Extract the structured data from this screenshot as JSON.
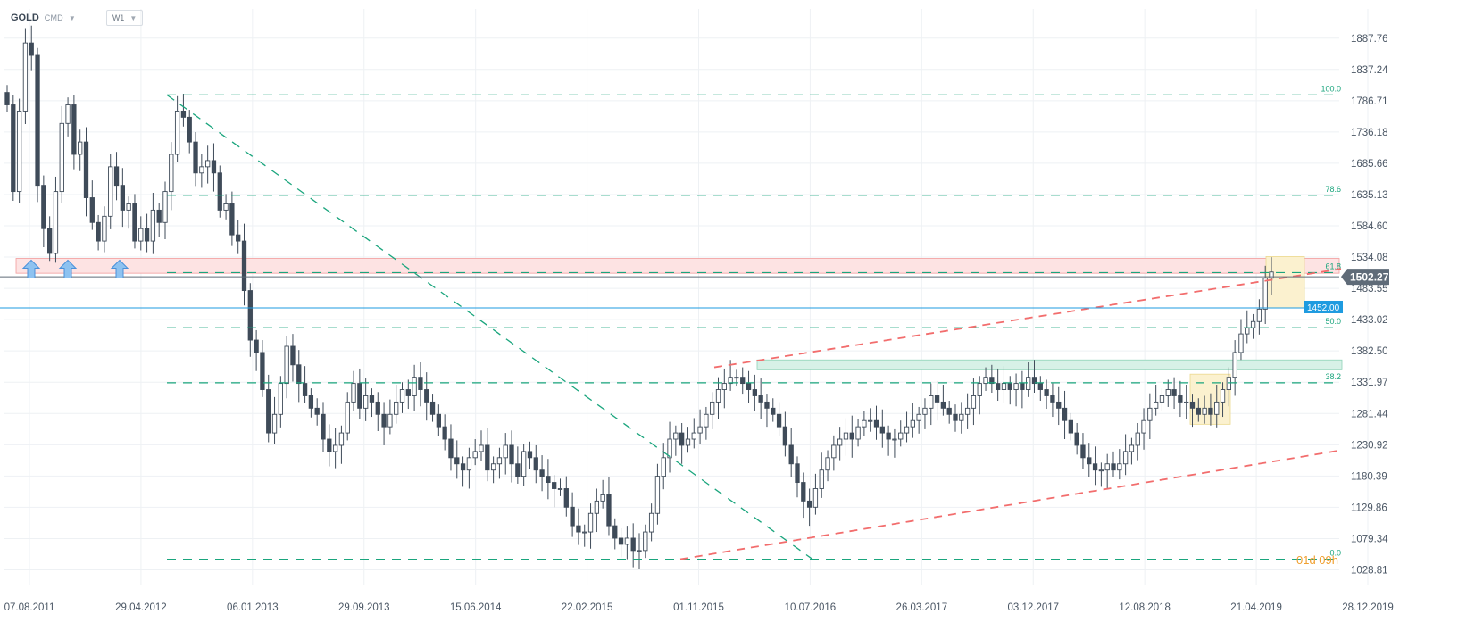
{
  "toolbar": {
    "symbol": "GOLD",
    "market": "CMD",
    "timeframe": "W1"
  },
  "chart_data": {
    "type": "candlestick",
    "symbol": "GOLD",
    "timeframe": "W1",
    "ylim": [
      1005,
      1935
    ],
    "y_ticks": [
      "1887.76",
      "1837.24",
      "1786.71",
      "1736.18",
      "1685.66",
      "1635.13",
      "1584.60",
      "1534.08",
      "1483.55",
      "1433.02",
      "1382.50",
      "1331.97",
      "1281.44",
      "1230.92",
      "1180.39",
      "1129.86",
      "1079.34",
      "1028.81"
    ],
    "x_ticks": [
      "07.08.2011",
      "29.04.2012",
      "06.01.2013",
      "29.09.2013",
      "15.06.2014",
      "22.02.2015",
      "01.11.2015",
      "10.07.2016",
      "26.03.2017",
      "03.12.2017",
      "12.08.2018",
      "21.04.2019",
      "28.12.2019"
    ],
    "current_price": "1502.27",
    "marked_level": "1452.00",
    "fibonacci": [
      {
        "label": "100.0",
        "value": 1796
      },
      {
        "label": "78.6",
        "value": 1634
      },
      {
        "label": "61.8",
        "value": 1509
      },
      {
        "label": "50.0",
        "value": 1420
      },
      {
        "label": "38.2",
        "value": 1331
      },
      {
        "label": "0.0",
        "value": 1046
      }
    ],
    "bottom_label": "01d 09h",
    "colors": {
      "bull": "#ffffff",
      "bear": "#3f4b59",
      "wick": "#3f4b59",
      "fib": "#1aa57d",
      "trend": "#f26d6d",
      "level": "#1e9be0",
      "price_tag": "#5f6b78",
      "resistance_zone": "#fde3e3",
      "support_zone": "#d7f1e7",
      "pattern_box": "#fbf1cf",
      "arrow": "#4a90d9",
      "timer": "#f0a030"
    },
    "grid": true,
    "candles": [
      1780,
      1640,
      1770,
      1880,
      1860,
      1650,
      1580,
      1540,
      1640,
      1750,
      1780,
      1700,
      1720,
      1630,
      1590,
      1560,
      1600,
      1680,
      1650,
      1610,
      1620,
      1560,
      1580,
      1560,
      1610,
      1590,
      1640,
      1700,
      1770,
      1760,
      1720,
      1670,
      1680,
      1690,
      1670,
      1610,
      1620,
      1570,
      1560,
      1480,
      1400,
      1380,
      1320,
      1250,
      1280,
      1330,
      1390,
      1360,
      1330,
      1310,
      1290,
      1280,
      1240,
      1220,
      1230,
      1250,
      1300,
      1330,
      1290,
      1310,
      1300,
      1280,
      1260,
      1280,
      1300,
      1320,
      1310,
      1340,
      1320,
      1300,
      1280,
      1260,
      1240,
      1210,
      1200,
      1190,
      1210,
      1220,
      1230,
      1190,
      1200,
      1210,
      1230,
      1200,
      1180,
      1220,
      1210,
      1190,
      1180,
      1170,
      1160,
      1160,
      1130,
      1100,
      1090,
      1090,
      1120,
      1140,
      1150,
      1100,
      1080,
      1070,
      1080,
      1060,
      1060,
      1090,
      1120,
      1180,
      1210,
      1240,
      1250,
      1230,
      1240,
      1250,
      1260,
      1280,
      1300,
      1320,
      1330,
      1340,
      1340,
      1330,
      1320,
      1310,
      1300,
      1290,
      1280,
      1260,
      1230,
      1200,
      1170,
      1140,
      1130,
      1160,
      1190,
      1210,
      1230,
      1240,
      1250,
      1240,
      1260,
      1270,
      1270,
      1260,
      1250,
      1240,
      1240,
      1250,
      1260,
      1270,
      1280,
      1290,
      1310,
      1300,
      1290,
      1280,
      1270,
      1280,
      1290,
      1310,
      1330,
      1340,
      1330,
      1320,
      1330,
      1320,
      1330,
      1320,
      1340,
      1330,
      1320,
      1310,
      1300,
      1290,
      1270,
      1250,
      1230,
      1210,
      1200,
      1190,
      1190,
      1200,
      1190,
      1200,
      1220,
      1230,
      1250,
      1270,
      1290,
      1300,
      1310,
      1320,
      1310,
      1300,
      1300,
      1290,
      1280,
      1290,
      1280,
      1300,
      1320,
      1340,
      1380,
      1410,
      1420,
      1430,
      1450,
      1500,
      1510
    ]
  }
}
